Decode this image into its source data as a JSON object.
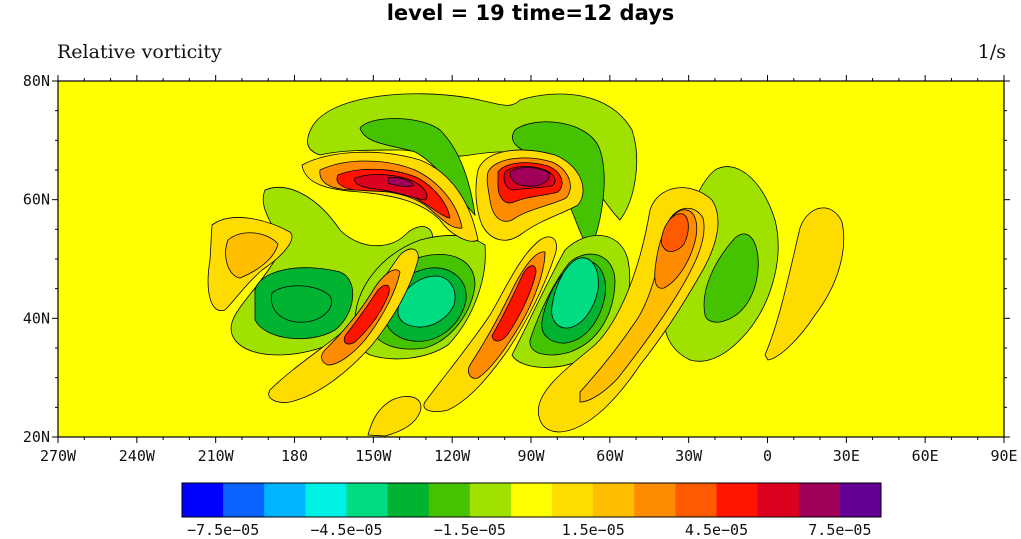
{
  "chart_data": {
    "type": "heatmap",
    "title": "level = 19 time=12 days",
    "left_string": "Relative vorticity",
    "right_string": "1/s",
    "x_ticks": [
      "270W",
      "240W",
      "210W",
      "180",
      "150W",
      "120W",
      "90W",
      "60W",
      "30W",
      "0",
      "30E",
      "60E",
      "90E"
    ],
    "y_ticks": [
      "20N",
      "40N",
      "60N",
      "80N"
    ],
    "xlim": [
      -270,
      90
    ],
    "ylim": [
      20,
      80
    ],
    "colorbar": {
      "colors": [
        "#0000ff",
        "#0a64ff",
        "#00b4ff",
        "#00f0e6",
        "#00dc82",
        "#00b432",
        "#46c300",
        "#a0e100",
        "#ffff00",
        "#ffdc00",
        "#ffbe00",
        "#ff8c00",
        "#ff5a00",
        "#ff1400",
        "#dc001e",
        "#a0005a",
        "#640096"
      ],
      "labels": [
        "−7.5e−05",
        "−4.5e−05",
        "−1.5e−05",
        "1.5e−05",
        "4.5e−05",
        "7.5e−05"
      ]
    },
    "features": [
      {
        "lon": -176,
        "lat": 42,
        "level": -3
      },
      {
        "lon": -145,
        "lat": 42,
        "level": -3
      },
      {
        "lon": -132,
        "lat": 43,
        "level": -4
      },
      {
        "lon": -132,
        "lat": 68,
        "level": -2
      },
      {
        "lon": -82,
        "lat": 67,
        "level": -2
      },
      {
        "lon": -78,
        "lat": 47,
        "level": -4
      },
      {
        "lon": -10,
        "lat": 45,
        "level": -3
      },
      {
        "lon": -148,
        "lat": 63,
        "level": 6
      },
      {
        "lon": -90,
        "lat": 63,
        "level": 7
      },
      {
        "lon": -150,
        "lat": 42,
        "level": 4
      },
      {
        "lon": -95,
        "lat": 42,
        "level": 5
      },
      {
        "lon": -33,
        "lat": 54,
        "level": 4
      },
      {
        "lon": -200,
        "lat": 52,
        "level": 1
      },
      {
        "lon": 20,
        "lat": 47,
        "level": 1
      }
    ]
  }
}
